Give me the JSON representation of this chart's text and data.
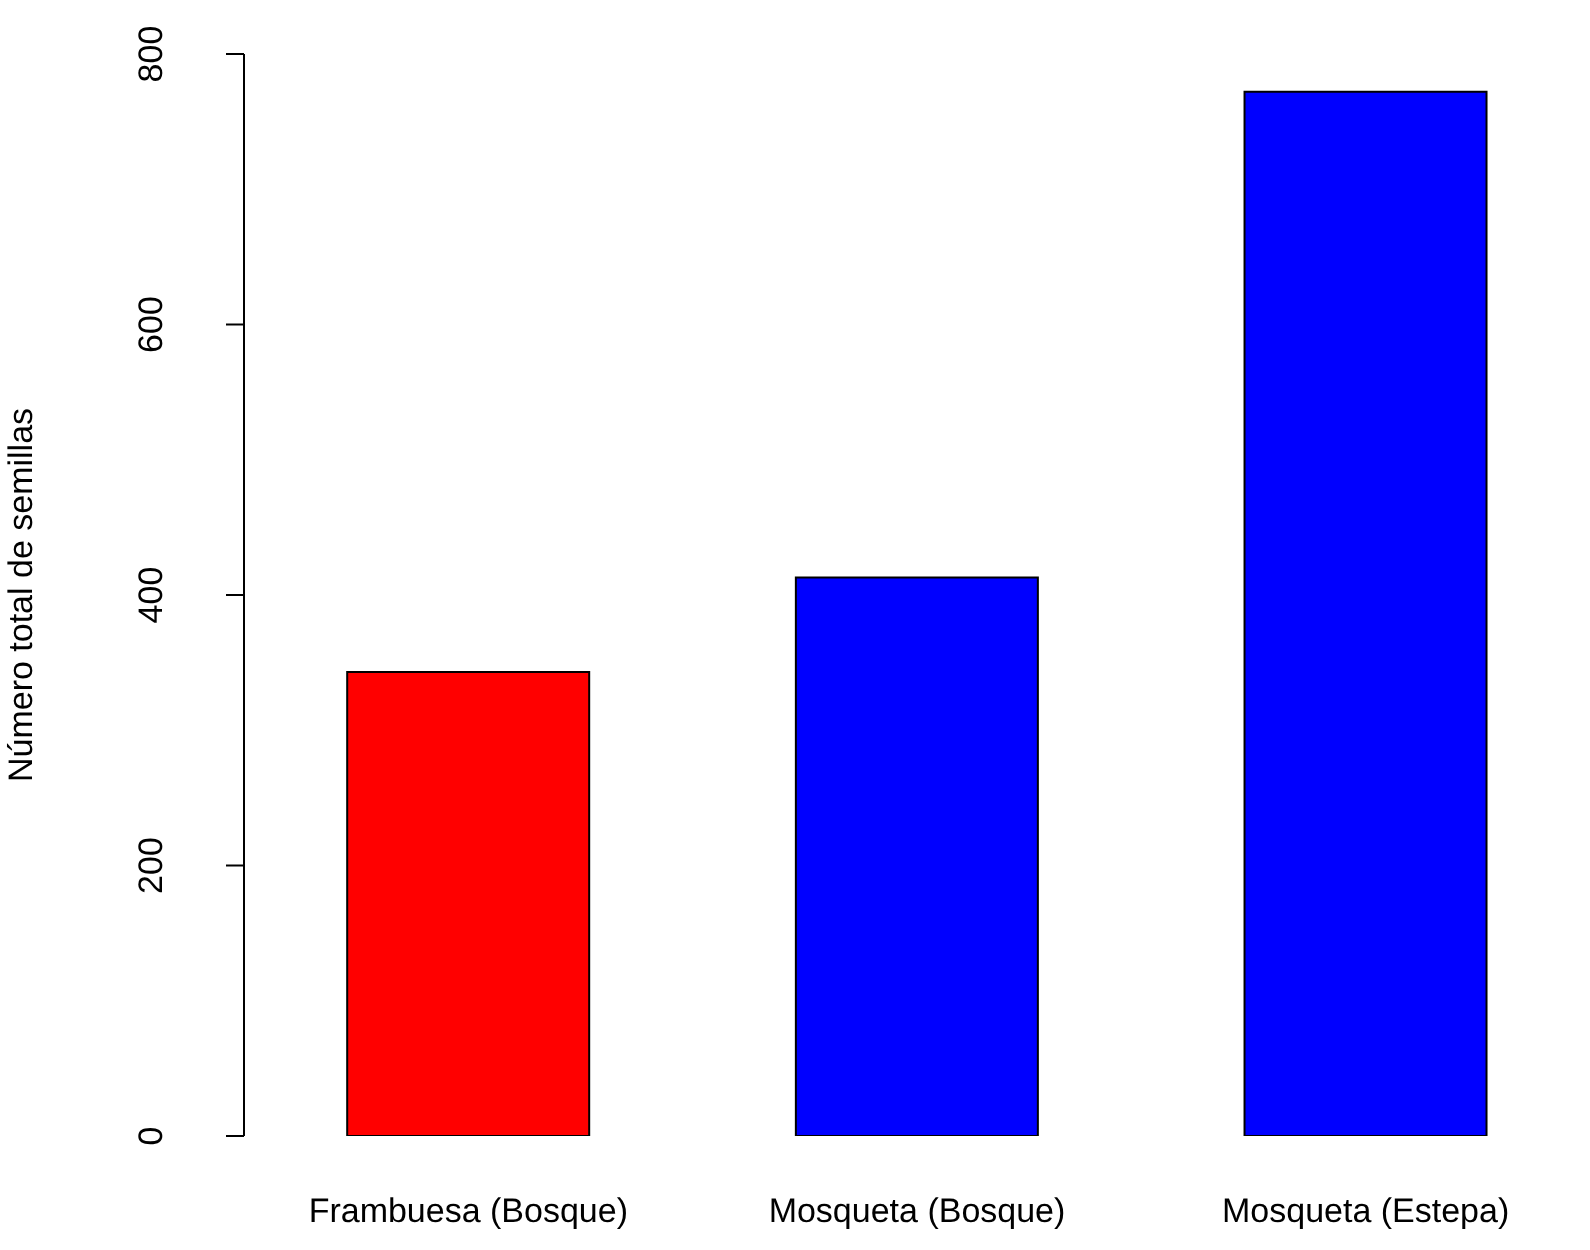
{
  "chart_data": {
    "type": "bar",
    "ylabel": "Número total de semillas",
    "categories": [
      "Frambuesa (Bosque)",
      "Mosqueta (Bosque)",
      "Mosqueta (Estepa)"
    ],
    "values": [
      343,
      413,
      772
    ],
    "colors": [
      "#ff0000",
      "#0000ff",
      "#0000ff"
    ],
    "ylim": [
      0,
      800
    ],
    "yticks": [
      0,
      200,
      400,
      600,
      800
    ],
    "grid": false,
    "legend": false
  }
}
